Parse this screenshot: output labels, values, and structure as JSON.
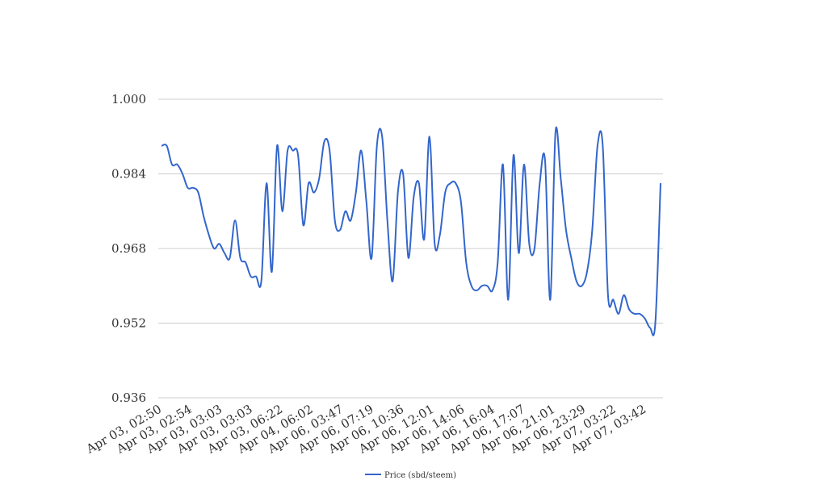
{
  "chart_data": {
    "type": "line",
    "title": "",
    "xlabel": "",
    "ylabel": "",
    "ylim": [
      0.936,
      1.0
    ],
    "yticks": [
      "1.000",
      "0.984",
      "0.968",
      "0.952",
      "0.936"
    ],
    "ytick_values": [
      1.0,
      0.984,
      0.968,
      0.952,
      0.936
    ],
    "x_tick_labels": [
      "Apr 03, 02:50",
      "Apr 03, 02:54",
      "Apr 03, 03:03",
      "Apr 03, 03:03",
      "Apr 03, 06:22",
      "Apr 04, 06:02",
      "Apr 06, 03:47",
      "Apr 06, 07:19",
      "Apr 06, 10:36",
      "Apr 06, 12:01",
      "Apr 06, 14:06",
      "Apr 06, 16:04",
      "Apr 06, 17:07",
      "Apr 06, 21:01",
      "Apr 06, 23:29",
      "Apr 07, 03:22",
      "Apr 07, 03:42"
    ],
    "grid": true,
    "legend_position": "bottom",
    "series": [
      {
        "name": "Price (sbd/steem)",
        "color": "#3366cc",
        "values": [
          0.99,
          0.99,
          0.986,
          0.986,
          0.984,
          0.981,
          0.981,
          0.98,
          0.975,
          0.971,
          0.968,
          0.969,
          0.967,
          0.966,
          0.974,
          0.966,
          0.965,
          0.962,
          0.962,
          0.961,
          0.982,
          0.963,
          0.99,
          0.976,
          0.989,
          0.989,
          0.988,
          0.973,
          0.982,
          0.98,
          0.983,
          0.991,
          0.989,
          0.974,
          0.972,
          0.976,
          0.974,
          0.98,
          0.989,
          0.978,
          0.966,
          0.99,
          0.992,
          0.974,
          0.961,
          0.98,
          0.984,
          0.966,
          0.979,
          0.982,
          0.97,
          0.992,
          0.969,
          0.971,
          0.98,
          0.982,
          0.982,
          0.978,
          0.965,
          0.96,
          0.959,
          0.96,
          0.96,
          0.959,
          0.965,
          0.986,
          0.957,
          0.988,
          0.967,
          0.986,
          0.969,
          0.968,
          0.982,
          0.987,
          0.957,
          0.993,
          0.983,
          0.972,
          0.966,
          0.961,
          0.96,
          0.963,
          0.972,
          0.99,
          0.99,
          0.958,
          0.957,
          0.954,
          0.958,
          0.955,
          0.954,
          0.954,
          0.953,
          0.951,
          0.952,
          0.982
        ]
      }
    ]
  }
}
